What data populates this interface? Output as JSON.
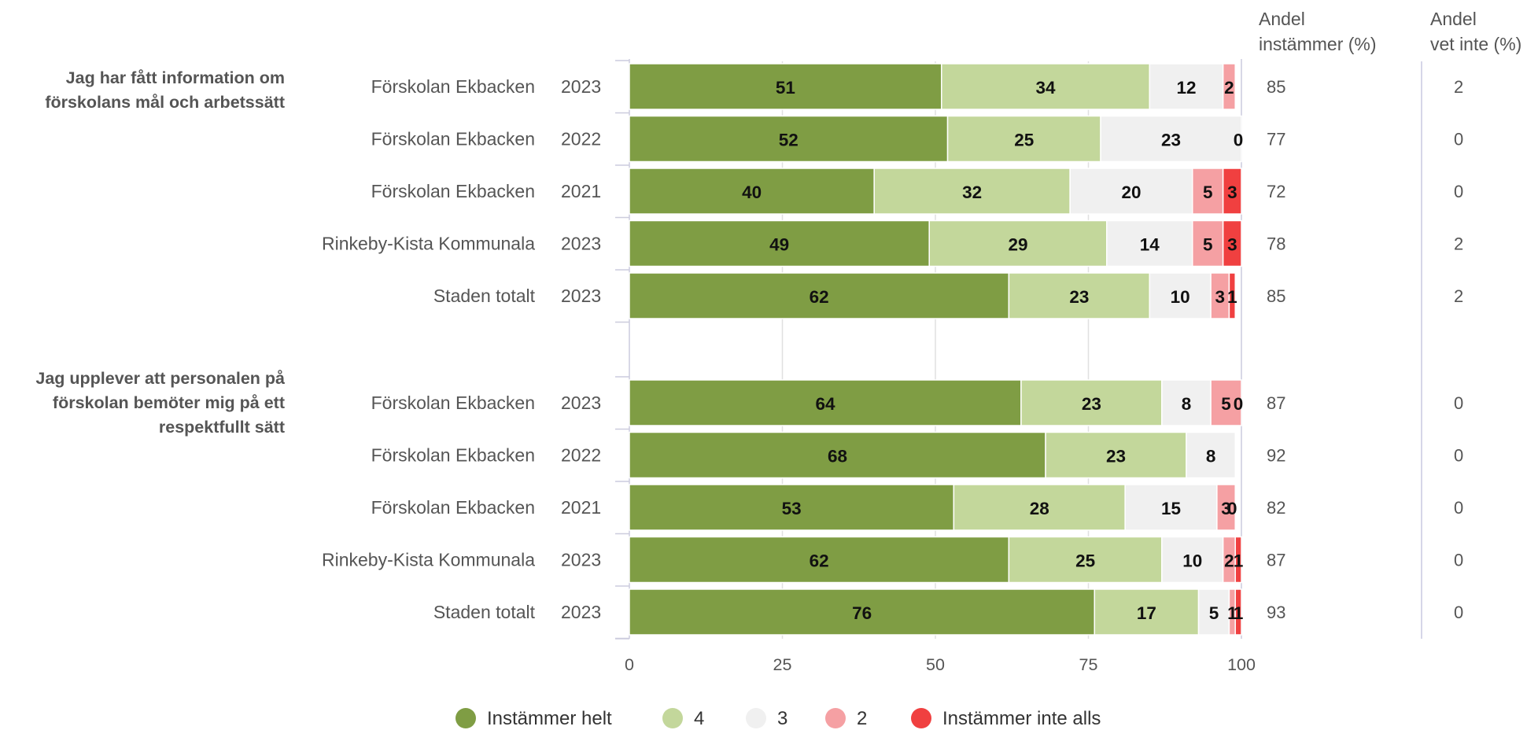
{
  "chart_data": {
    "type": "bar",
    "orientation": "horizontal",
    "stacked": true,
    "xlim": [
      0,
      100
    ],
    "x_ticks": [
      "0",
      "25",
      "50",
      "75",
      "100"
    ],
    "grid": true,
    "legend_position": "bottom",
    "column_headers": {
      "andel_instammer": [
        "Andel",
        "instämmer (%)"
      ],
      "andel_vet_inte": [
        "Andel",
        "vet inte (%)"
      ]
    },
    "series": [
      {
        "name": "Instämmer helt",
        "color": "#7f9d44"
      },
      {
        "name": "4",
        "color": "#c3d79b"
      },
      {
        "name": "3",
        "color": "#f0f0f0"
      },
      {
        "name": "2",
        "color": "#f5a0a3"
      },
      {
        "name": "Instämmer inte alls",
        "color": "#f04040"
      }
    ],
    "groups": [
      {
        "question": [
          "Jag har fått information om",
          "förskolans mål och arbetssätt"
        ],
        "rows": [
          {
            "unit": "Förskolan Ekbacken",
            "year": "2023",
            "values": [
              51,
              34,
              12,
              2,
              0
            ],
            "andel_instammer": "85",
            "andel_vet_inte": "2"
          },
          {
            "unit": "Förskolan Ekbacken",
            "year": "2022",
            "values": [
              52,
              25,
              23,
              0,
              0
            ],
            "andel_instammer": "77",
            "andel_vet_inte": "0"
          },
          {
            "unit": "Förskolan Ekbacken",
            "year": "2021",
            "values": [
              40,
              32,
              20,
              5,
              3
            ],
            "andel_instammer": "72",
            "andel_vet_inte": "0"
          },
          {
            "unit": "Rinkeby-Kista Kommunala",
            "year": "2023",
            "values": [
              49,
              29,
              14,
              5,
              3
            ],
            "andel_instammer": "78",
            "andel_vet_inte": "2"
          },
          {
            "unit": "Staden totalt",
            "year": "2023",
            "values": [
              62,
              23,
              10,
              3,
              1
            ],
            "andel_instammer": "85",
            "andel_vet_inte": "2"
          }
        ]
      },
      {
        "question": [
          "Jag upplever att personalen på",
          "förskolan bemöter mig på ett",
          "respektfullt sätt"
        ],
        "rows": [
          {
            "unit": "Förskolan Ekbacken",
            "year": "2023",
            "values": [
              64,
              23,
              8,
              5,
              0
            ],
            "andel_instammer": "87",
            "andel_vet_inte": "0"
          },
          {
            "unit": "Förskolan Ekbacken",
            "year": "2022",
            "values": [
              68,
              23,
              8,
              0,
              0
            ],
            "andel_instammer": "92",
            "andel_vet_inte": "0"
          },
          {
            "unit": "Förskolan Ekbacken",
            "year": "2021",
            "values": [
              53,
              28,
              15,
              3,
              0
            ],
            "andel_instammer": "82",
            "andel_vet_inte": "0"
          },
          {
            "unit": "Rinkeby-Kista Kommunala",
            "year": "2023",
            "values": [
              62,
              25,
              10,
              2,
              1
            ],
            "andel_instammer": "87",
            "andel_vet_inte": "0"
          },
          {
            "unit": "Staden totalt",
            "year": "2023",
            "values": [
              76,
              17,
              5,
              1,
              1
            ],
            "andel_instammer": "93",
            "andel_vet_inte": "0"
          }
        ]
      }
    ],
    "hidden_segment_labels": [
      {
        "group": 0,
        "row": 0,
        "series": 4
      },
      {
        "group": 0,
        "row": 1,
        "series": 3
      },
      {
        "group": 1,
        "row": 1,
        "series": 3
      },
      {
        "group": 1,
        "row": 1,
        "series": 4
      }
    ]
  }
}
